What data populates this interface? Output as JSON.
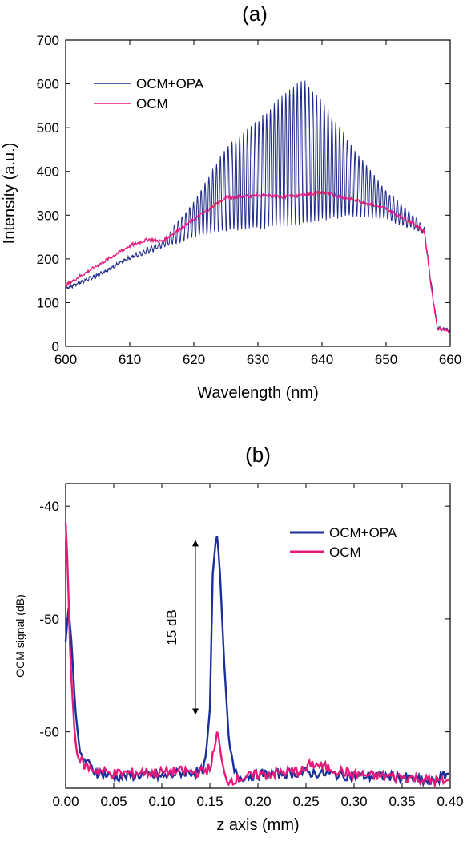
{
  "chart_data": [
    {
      "type": "line",
      "panel_label": "(a)",
      "xlabel": "Wavelength (nm)",
      "ylabel": "Intensity (a.u.)",
      "xlim": [
        600,
        660
      ],
      "ylim": [
        0,
        700
      ],
      "xticks": [
        600,
        610,
        620,
        630,
        640,
        650,
        660
      ],
      "yticks": [
        0,
        100,
        200,
        300,
        400,
        500,
        600,
        700
      ],
      "legend_position": "top-left",
      "note": "OCM+OPA spectrum shows strong fringe modulation; envelope values listed",
      "series": [
        {
          "name": "OCM+OPA",
          "color": "#1f2a8a",
          "x": [
            600,
            605,
            610,
            615,
            620,
            625,
            630,
            635,
            637,
            640,
            645,
            650,
            655,
            656,
            657,
            658,
            660
          ],
          "upper": [
            135,
            165,
            205,
            240,
            330,
            455,
            515,
            590,
            610,
            560,
            450,
            355,
            290,
            270,
            150,
            45,
            38
          ],
          "lower": [
            130,
            160,
            200,
            225,
            250,
            265,
            270,
            275,
            280,
            290,
            300,
            290,
            265,
            255,
            140,
            40,
            35
          ]
        },
        {
          "name": "OCM",
          "color": "#e5197a",
          "x": [
            600,
            605,
            610,
            613,
            615,
            620,
            625,
            630,
            635,
            640,
            645,
            650,
            655,
            656,
            657,
            658,
            660
          ],
          "values": [
            140,
            185,
            230,
            245,
            240,
            290,
            340,
            345,
            342,
            352,
            335,
            315,
            275,
            262,
            140,
            42,
            36
          ]
        }
      ]
    },
    {
      "type": "line",
      "panel_label": "(b)",
      "xlabel": "z axis (mm)",
      "ylabel": "OCM signal (dB)",
      "xlim": [
        0.0,
        0.4
      ],
      "ylim": [
        -65,
        -38
      ],
      "xticks": [
        "0.00",
        "0.05",
        "0.10",
        "0.15",
        "0.20",
        "0.25",
        "0.30",
        "0.35",
        "0.40"
      ],
      "yticks": [
        -40,
        -50,
        -60
      ],
      "legend_position": "top-right",
      "annotation": {
        "text": "15 dB",
        "x": 0.135,
        "y_from": -43,
        "y_to": -58.5
      },
      "series": [
        {
          "name": "OCM+OPA",
          "color": "#1a2f9c",
          "x": [
            0.0,
            0.003,
            0.006,
            0.01,
            0.015,
            0.02,
            0.03,
            0.05,
            0.08,
            0.1,
            0.12,
            0.14,
            0.145,
            0.15,
            0.153,
            0.157,
            0.16,
            0.165,
            0.17,
            0.175,
            0.18,
            0.2,
            0.25,
            0.3,
            0.35,
            0.38,
            0.4
          ],
          "values": [
            -52,
            -49,
            -52,
            -58,
            -62,
            -62.5,
            -63.5,
            -64,
            -63.8,
            -64,
            -63.6,
            -63.6,
            -63,
            -58,
            -46,
            -42.2,
            -45,
            -54,
            -61,
            -63.5,
            -64,
            -63.8,
            -63.6,
            -63.9,
            -64,
            -64.5,
            -63.6
          ]
        },
        {
          "name": "OCM",
          "color": "#e5197a",
          "x": [
            0.0,
            0.002,
            0.005,
            0.01,
            0.015,
            0.02,
            0.03,
            0.05,
            0.08,
            0.1,
            0.12,
            0.14,
            0.15,
            0.155,
            0.158,
            0.162,
            0.166,
            0.17,
            0.2,
            0.25,
            0.255,
            0.3,
            0.35,
            0.38,
            0.4
          ],
          "values": [
            -41.5,
            -45,
            -54,
            -61,
            -62.5,
            -63,
            -63.4,
            -63.7,
            -63.6,
            -63.6,
            -63.5,
            -63.6,
            -63.2,
            -61.5,
            -59.7,
            -62.5,
            -64.2,
            -64.3,
            -63.8,
            -63.4,
            -62.8,
            -63.8,
            -64,
            -64.3,
            -64.5
          ]
        }
      ]
    }
  ]
}
